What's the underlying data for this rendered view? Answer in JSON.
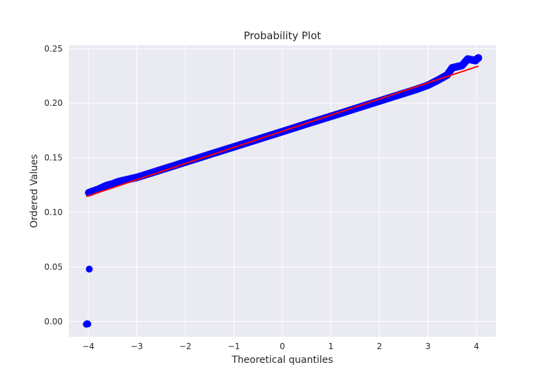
{
  "chart_data": {
    "type": "scatter",
    "title": "Probability Plot",
    "xlabel": "Theoretical quantiles",
    "ylabel": "Ordered Values",
    "xlim": [
      -4.4,
      4.4
    ],
    "ylim": [
      -0.014,
      0.253
    ],
    "x_ticks": [
      -4,
      -3,
      -2,
      -1,
      0,
      1,
      2,
      3,
      4
    ],
    "x_tick_labels": [
      "−4",
      "−3",
      "−2",
      "−1",
      "0",
      "1",
      "2",
      "3",
      "4"
    ],
    "y_ticks": [
      0.0,
      0.05,
      0.1,
      0.15,
      0.2,
      0.25
    ],
    "y_tick_labels": [
      "0.00",
      "0.05",
      "0.10",
      "0.15",
      "0.20",
      "0.25"
    ],
    "grid": true,
    "style": {
      "background": "#eaeaf2",
      "grid_color": "#ffffff",
      "point_color": "#0000ff",
      "line_color": "#ff0000"
    },
    "series": [
      {
        "kind": "points",
        "points": [
          [
            -4.04,
            -0.0025
          ],
          [
            -4.03,
            -0.0022
          ],
          [
            -4.02,
            -0.002
          ],
          [
            -4.01,
            -0.0023
          ],
          [
            -3.98,
            0.048
          ],
          [
            -3.99,
            0.118
          ],
          [
            -3.8,
            0.121
          ],
          [
            -3.7,
            0.123
          ],
          [
            -3.6,
            0.125
          ],
          [
            -3.5,
            0.126
          ],
          [
            -3.45,
            0.127
          ],
          [
            -3.35,
            0.1285
          ],
          [
            -3.2,
            0.13
          ],
          [
            -3.0,
            0.132
          ],
          [
            -2.75,
            0.1355
          ],
          [
            -2.5,
            0.139
          ],
          [
            -2.25,
            0.1425
          ],
          [
            -2.0,
            0.146
          ],
          [
            -1.75,
            0.1495
          ],
          [
            -1.5,
            0.153
          ],
          [
            -1.25,
            0.1565
          ],
          [
            -1.0,
            0.16
          ],
          [
            -0.75,
            0.1635
          ],
          [
            -0.5,
            0.167
          ],
          [
            -0.25,
            0.1705
          ],
          [
            0.0,
            0.174
          ],
          [
            0.25,
            0.1775
          ],
          [
            0.5,
            0.181
          ],
          [
            0.75,
            0.1845
          ],
          [
            1.0,
            0.188
          ],
          [
            1.25,
            0.1915
          ],
          [
            1.5,
            0.195
          ],
          [
            1.75,
            0.1985
          ],
          [
            2.0,
            0.202
          ],
          [
            2.25,
            0.2055
          ],
          [
            2.5,
            0.209
          ],
          [
            2.75,
            0.2125
          ],
          [
            3.0,
            0.2165
          ],
          [
            3.2,
            0.221
          ],
          [
            3.4,
            0.226
          ],
          [
            3.5,
            0.2325
          ],
          [
            3.6,
            0.2335
          ],
          [
            3.7,
            0.2345
          ],
          [
            3.82,
            0.2405
          ],
          [
            3.98,
            0.239
          ],
          [
            4.02,
            0.241
          ],
          [
            4.04,
            0.2415
          ]
        ]
      },
      {
        "kind": "fit_line",
        "points": [
          [
            -4.04,
            0.1145
          ],
          [
            4.04,
            0.234
          ]
        ]
      }
    ]
  }
}
